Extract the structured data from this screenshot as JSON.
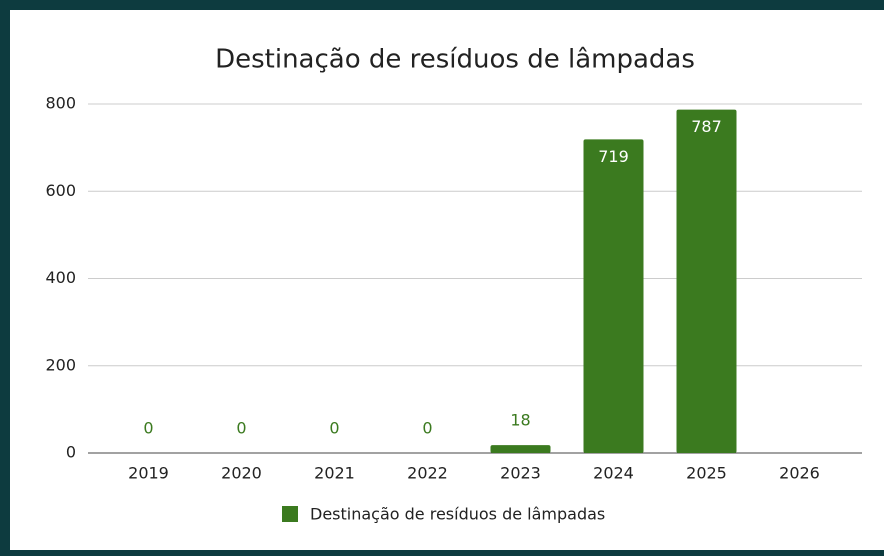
{
  "chart_data": {
    "type": "bar",
    "title": "Destinação de resíduos de lâmpadas",
    "categories": [
      "2019",
      "2020",
      "2021",
      "2022",
      "2023",
      "2024",
      "2025",
      "2026"
    ],
    "series": [
      {
        "name": "Destinação de resíduos de lâmpadas",
        "color": "#3b7a1f",
        "values": [
          0,
          0,
          0,
          0,
          18,
          719,
          787,
          null
        ]
      }
    ],
    "ylim": [
      0,
      800
    ],
    "yticks": [
      0,
      200,
      400,
      600,
      800
    ],
    "grid": true,
    "legend": "bottom"
  }
}
